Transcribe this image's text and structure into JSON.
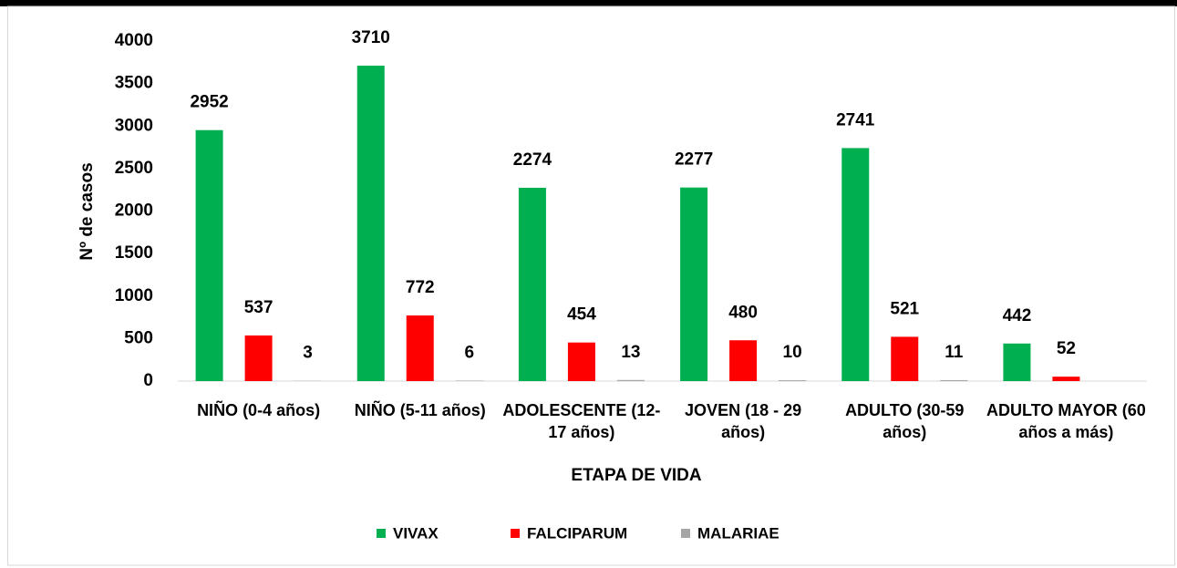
{
  "chart_data": {
    "type": "bar",
    "x_label": "ETAPA DE VIDA",
    "y_label": "Nº de casos",
    "categories": [
      "NIÑO (0-4 años)",
      "NIÑO (5-11 años)",
      "ADOLESCENTE (12-17 años)",
      "JOVEN (18 - 29 años)",
      "ADULTO (30-59 años)",
      "ADULTO MAYOR (60 años a más)"
    ],
    "series": [
      {
        "name": "VIVAX",
        "color": "#00b050",
        "values": [
          2952,
          3710,
          2274,
          2277,
          2741,
          442
        ]
      },
      {
        "name": "FALCIPARUM",
        "color": "#ff0000",
        "values": [
          537,
          772,
          454,
          480,
          521,
          52
        ]
      },
      {
        "name": "MALARIAE",
        "color": "#a6a6a6",
        "values": [
          3,
          6,
          13,
          10,
          11,
          null
        ]
      }
    ],
    "ylim": [
      0,
      4000
    ],
    "yticks": [
      0,
      500,
      1000,
      1500,
      2000,
      2500,
      3000,
      3500,
      4000
    ],
    "grid": false,
    "legend": "bottom"
  }
}
